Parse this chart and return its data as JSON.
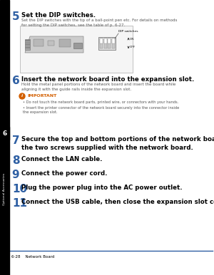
{
  "bg_color": "#ffffff",
  "sidebar_color": "#000000",
  "sidebar_label": "Optional Accessories",
  "chapter_num": "6",
  "footer_line_color": "#2e5fa3",
  "footer_text": "6-28    Network Board",
  "step5_num": "5",
  "step5_title": "Set the DIP switches.",
  "step5_body": "Set the DIP switches with the tip of a ball-point pen etc. For details on methods\nfor setting the DIP switches, see the table of p. 6-27.",
  "step6_num": "6",
  "step6_title": "Insert the network board into the expansion slot.",
  "step6_body": "Hold the metal panel portions of the network board and insert the board while\naligning it with the guide rails inside the expansion slot.",
  "important_label": "IMPORTANT",
  "bullet1": "Do not touch the network board parts, printed wire, or connectors with your hands.",
  "bullet2": "Insert the printer connector of the network board securely into the connector inside\nthe expansion slot.",
  "step7_num": "7",
  "step7_title": "Secure the top and bottom portions of the network board with\nthe two screws supplied with the network board.",
  "step8_num": "8",
  "step8_title": "Connect the LAN cable.",
  "step9_num": "9",
  "step9_title": "Connect the power cord.",
  "step10_num": "10",
  "step10_title": "Plug the power plug into the AC power outlet.",
  "step11_num": "11",
  "step11_title": "Connect the USB cable, then close the expansion slot cover.",
  "blue_color": "#2e5fa3",
  "orange_color": "#d35f00",
  "text_color": "#333333",
  "dark_gray": "#444444",
  "footer_line_color2": "#2e5fa3"
}
